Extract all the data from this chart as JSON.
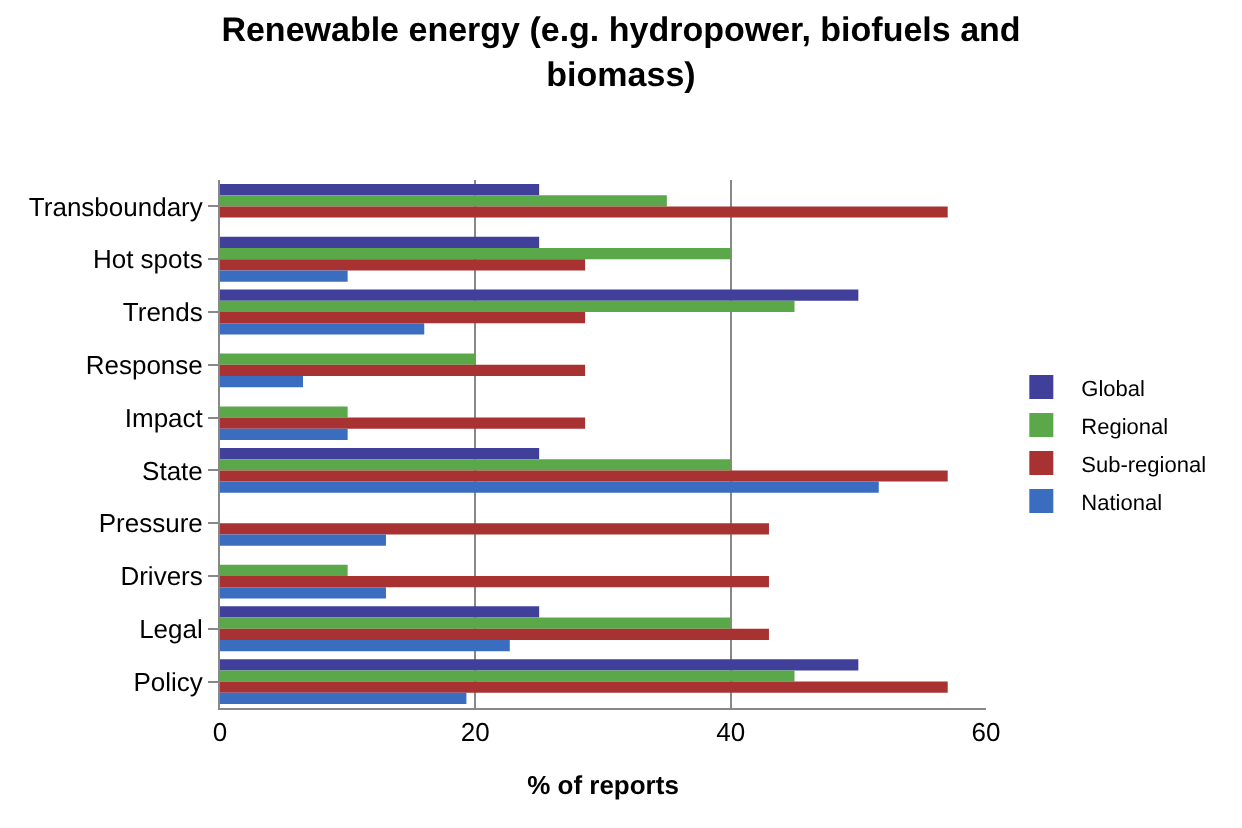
{
  "chart_data": {
    "type": "bar",
    "orientation": "horizontal",
    "title": "Renewable energy (e.g. hydropower, biofuels and biomass)",
    "xlabel": "% of reports",
    "categories": [
      "Transboundary",
      "Hot spots",
      "Trends",
      "Response",
      "Impact",
      "State",
      "Pressure",
      "Drivers",
      "Legal",
      "Policy"
    ],
    "series": [
      {
        "name": "Global",
        "color": "#40409a",
        "values": [
          25,
          25,
          50,
          null,
          null,
          25,
          null,
          null,
          25,
          50
        ]
      },
      {
        "name": "Regional",
        "color": "#5aa84a",
        "values": [
          35,
          40,
          45,
          20,
          10,
          40,
          null,
          10,
          40,
          45
        ]
      },
      {
        "name": "Sub-regional",
        "color": "#a83232",
        "values": [
          57,
          28.6,
          28.6,
          28.6,
          28.6,
          57,
          43,
          43,
          43,
          57
        ]
      },
      {
        "name": "National",
        "color": "#3a6cc0",
        "values": [
          null,
          10,
          16,
          6.5,
          10,
          51.6,
          13,
          13,
          22.7,
          19.3
        ]
      }
    ],
    "xlim": [
      0,
      60
    ],
    "xticks": [
      0,
      20,
      40,
      60
    ],
    "grid": "x",
    "legend": "right"
  }
}
